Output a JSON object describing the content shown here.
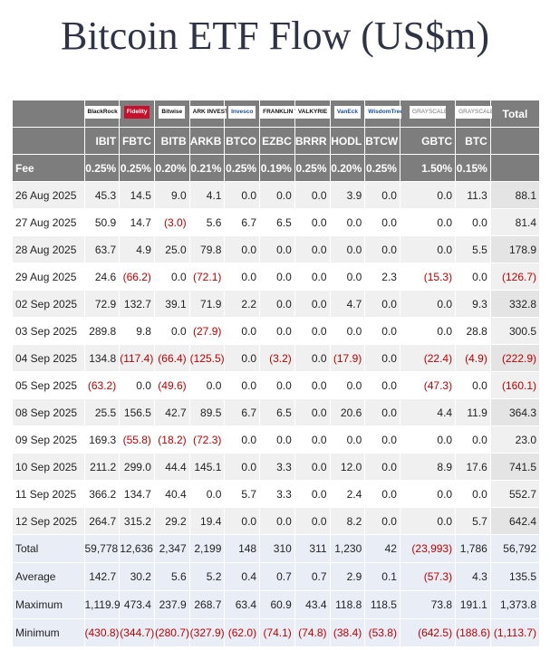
{
  "title": "Bitcoin ETF Flow (US$m)",
  "colors": {
    "header_bg": "#7d7d7d",
    "negative": "#c00000",
    "row_alt": "#f0f0f0",
    "summary_bg": "#e9edf6",
    "title": "#2e3345"
  },
  "issuers": [
    {
      "logo": "BlackRock",
      "style": ""
    },
    {
      "logo": "Fidelity",
      "style": "red"
    },
    {
      "logo": "Bitwise",
      "style": ""
    },
    {
      "logo": "ARK INVEST",
      "style": ""
    },
    {
      "logo": "Invesco",
      "style": "blue"
    },
    {
      "logo": "FRANKLIN TEMPLETON",
      "style": ""
    },
    {
      "logo": "VALKYRIE",
      "style": ""
    },
    {
      "logo": "VanEck",
      "style": "blue"
    },
    {
      "logo": "WisdomTree",
      "style": "blue"
    },
    {
      "logo": "GRAYSCALE",
      "style": "gray"
    },
    {
      "logo": "GRAYSCALE",
      "style": "gray"
    }
  ],
  "total_header": "Total",
  "tickers": [
    "IBIT",
    "FBTC",
    "BITB",
    "ARKB",
    "BTCO",
    "EZBC",
    "BRRR",
    "HODL",
    "BTCW",
    "GBTC",
    "BTC"
  ],
  "fee_label": "Fee",
  "fees": [
    "0.25%",
    "0.25%",
    "0.20%",
    "0.21%",
    "0.25%",
    "0.19%",
    "0.25%",
    "0.20%",
    "0.25%",
    "1.50%",
    "0.15%"
  ],
  "chart_data": {
    "type": "table",
    "title": "Bitcoin ETF Flow (US$m)",
    "columns": [
      "IBIT",
      "FBTC",
      "BITB",
      "ARKB",
      "BTCO",
      "EZBC",
      "BRRR",
      "HODL",
      "BTCW",
      "GBTC",
      "BTC",
      "Total"
    ],
    "rows": [
      {
        "label": "26 Aug 2025",
        "cells": [
          "45.3",
          "14.5",
          "9.0",
          "4.1",
          "0.0",
          "0.0",
          "0.0",
          "3.9",
          "0.0",
          "0.0",
          "11.3",
          "88.1"
        ]
      },
      {
        "label": "27 Aug 2025",
        "cells": [
          "50.9",
          "14.7",
          "(3.0)",
          "5.6",
          "6.7",
          "6.5",
          "0.0",
          "0.0",
          "0.0",
          "0.0",
          "0.0",
          "81.4"
        ]
      },
      {
        "label": "28 Aug 2025",
        "cells": [
          "63.7",
          "4.9",
          "25.0",
          "79.8",
          "0.0",
          "0.0",
          "0.0",
          "0.0",
          "0.0",
          "0.0",
          "5.5",
          "178.9"
        ]
      },
      {
        "label": "29 Aug 2025",
        "cells": [
          "24.6",
          "(66.2)",
          "0.0",
          "(72.1)",
          "0.0",
          "0.0",
          "0.0",
          "0.0",
          "2.3",
          "(15.3)",
          "0.0",
          "(126.7)"
        ]
      },
      {
        "label": "02 Sep 2025",
        "cells": [
          "72.9",
          "132.7",
          "39.1",
          "71.9",
          "2.2",
          "0.0",
          "0.0",
          "4.7",
          "0.0",
          "0.0",
          "9.3",
          "332.8"
        ]
      },
      {
        "label": "03 Sep 2025",
        "cells": [
          "289.8",
          "9.8",
          "0.0",
          "(27.9)",
          "0.0",
          "0.0",
          "0.0",
          "0.0",
          "0.0",
          "0.0",
          "28.8",
          "300.5"
        ]
      },
      {
        "label": "04 Sep 2025",
        "cells": [
          "134.8",
          "(117.4)",
          "(66.4)",
          "(125.5)",
          "0.0",
          "(3.2)",
          "0.0",
          "(17.9)",
          "0.0",
          "(22.4)",
          "(4.9)",
          "(222.9)"
        ]
      },
      {
        "label": "05 Sep 2025",
        "cells": [
          "(63.2)",
          "0.0",
          "(49.6)",
          "0.0",
          "0.0",
          "0.0",
          "0.0",
          "0.0",
          "0.0",
          "(47.3)",
          "0.0",
          "(160.1)"
        ]
      },
      {
        "label": "08 Sep 2025",
        "cells": [
          "25.5",
          "156.5",
          "42.7",
          "89.5",
          "6.7",
          "6.5",
          "0.0",
          "20.6",
          "0.0",
          "4.4",
          "11.9",
          "364.3"
        ]
      },
      {
        "label": "09 Sep 2025",
        "cells": [
          "169.3",
          "(55.8)",
          "(18.2)",
          "(72.3)",
          "0.0",
          "0.0",
          "0.0",
          "0.0",
          "0.0",
          "0.0",
          "0.0",
          "23.0"
        ]
      },
      {
        "label": "10 Sep 2025",
        "cells": [
          "211.2",
          "299.0",
          "44.4",
          "145.1",
          "0.0",
          "3.3",
          "0.0",
          "12.0",
          "0.0",
          "8.9",
          "17.6",
          "741.5"
        ]
      },
      {
        "label": "11 Sep 2025",
        "cells": [
          "366.2",
          "134.7",
          "40.4",
          "0.0",
          "5.7",
          "3.3",
          "0.0",
          "2.4",
          "0.0",
          "0.0",
          "0.0",
          "552.7"
        ]
      },
      {
        "label": "12 Sep 2025",
        "cells": [
          "264.7",
          "315.2",
          "29.2",
          "19.4",
          "0.0",
          "0.0",
          "0.0",
          "8.2",
          "0.0",
          "0.0",
          "5.7",
          "642.4"
        ]
      }
    ],
    "summary": [
      {
        "label": "Total",
        "cells": [
          "59,778",
          "12,636",
          "2,347",
          "2,199",
          "148",
          "310",
          "311",
          "1,230",
          "42",
          "(23,993)",
          "1,786",
          "56,792"
        ]
      },
      {
        "label": "Average",
        "cells": [
          "142.7",
          "30.2",
          "5.6",
          "5.2",
          "0.4",
          "0.7",
          "0.7",
          "2.9",
          "0.1",
          "(57.3)",
          "4.3",
          "135.5"
        ]
      },
      {
        "label": "Maximum",
        "cells": [
          "1,119.9",
          "473.4",
          "237.9",
          "268.7",
          "63.4",
          "60.9",
          "43.4",
          "118.8",
          "118.5",
          "73.8",
          "191.1",
          "1,373.8"
        ]
      },
      {
        "label": "Minimum",
        "cells": [
          "(430.8)",
          "(344.7)",
          "(280.7)",
          "(327.9)",
          "(62.0)",
          "(74.1)",
          "(74.8)",
          "(38.4)",
          "(53.8)",
          "(642.5)",
          "(188.6)",
          "(1,113.7)"
        ]
      }
    ]
  }
}
